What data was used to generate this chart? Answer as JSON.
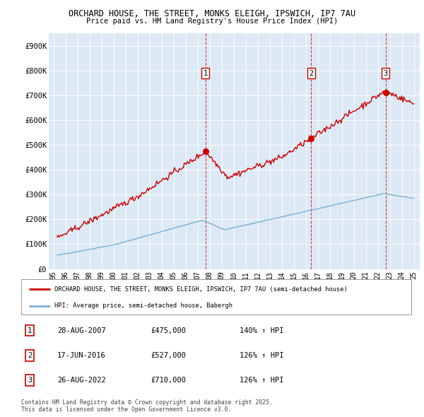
{
  "title": "ORCHARD HOUSE, THE STREET, MONKS ELEIGH, IPSWICH, IP7 7AU",
  "subtitle": "Price paid vs. HM Land Registry's House Price Index (HPI)",
  "legend_line1": "ORCHARD HOUSE, THE STREET, MONKS ELEIGH, IPSWICH, IP7 7AU (semi-detached house)",
  "legend_line2": "HPI: Average price, semi-detached house, Babergh",
  "footer": "Contains HM Land Registry data © Crown copyright and database right 2025.\nThis data is licensed under the Open Government Licence v3.0.",
  "sale_color": "#cc0000",
  "hpi_color": "#7ab0d4",
  "vline_color": "#cc0000",
  "background_color": "#dce9f5",
  "ylim": [
    0,
    950000
  ],
  "yticks": [
    0,
    100000,
    200000,
    300000,
    400000,
    500000,
    600000,
    700000,
    800000,
    900000
  ],
  "ytick_labels": [
    "£0",
    "£100K",
    "£200K",
    "£300K",
    "£400K",
    "£500K",
    "£600K",
    "£700K",
    "£800K",
    "£900K"
  ],
  "sale_dates": [
    2007.65,
    2016.46,
    2022.65
  ],
  "sale_prices": [
    475000,
    527000,
    710000
  ],
  "sale_labels": [
    "1",
    "2",
    "3"
  ],
  "table_data": [
    [
      "1",
      "28-AUG-2007",
      "£475,000",
      "140% ↑ HPI"
    ],
    [
      "2",
      "17-JUN-2016",
      "£527,000",
      "126% ↑ HPI"
    ],
    [
      "3",
      "26-AUG-2022",
      "£710,000",
      "126% ↑ HPI"
    ]
  ]
}
